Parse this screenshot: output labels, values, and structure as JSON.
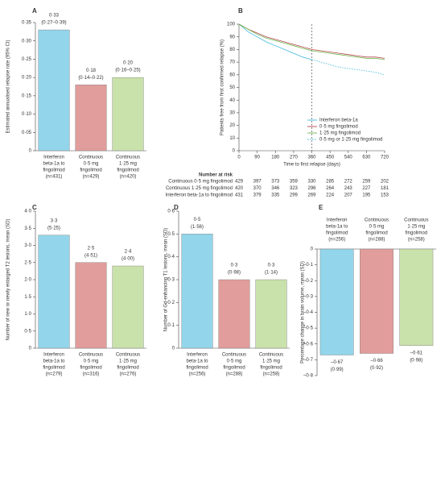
{
  "chart_data": [
    {
      "type": "bar",
      "panel": "A",
      "ylabel": "Estimated annualised relapse rate (95% CI)",
      "categories": [
        [
          "Interferon",
          "beta-1a to",
          "fingolimod",
          "(n=431)"
        ],
        [
          "Continuous",
          "0·5 mg",
          "fingolimod",
          "(n=429)"
        ],
        [
          "Continuous",
          "1·25 mg",
          "fingolimod",
          "(n=420)"
        ]
      ],
      "values": [
        0.33,
        0.18,
        0.2
      ],
      "value_labels": [
        "0·33",
        "0·18",
        "0·20"
      ],
      "detail_labels": [
        "(0·27–0·39)",
        "(0·14–0·22)",
        "(0·16–0·25)"
      ],
      "colors": [
        "#93d5ea",
        "#e19d9b",
        "#c9e1aa"
      ],
      "ylim": [
        0,
        0.35
      ],
      "yticks": [
        0,
        {
          "value": 0.05,
          "label": "0·05"
        },
        {
          "value": 0.1,
          "label": "0·10"
        },
        {
          "value": 0.15,
          "label": "0·15"
        },
        {
          "value": 0.2,
          "label": "0·20"
        },
        {
          "value": 0.25,
          "label": "0·25"
        },
        {
          "value": 0.3,
          "label": "0·30"
        },
        {
          "value": 0.35,
          "label": "0·35"
        }
      ]
    },
    {
      "type": "line",
      "panel": "B",
      "ylabel": "Patients free from first confirmed relapse (%)",
      "xlabel": "Time to first relapse (days)",
      "x": [
        0,
        45,
        90,
        135,
        180,
        225,
        270,
        315,
        360,
        405,
        450,
        495,
        540,
        585,
        630,
        675,
        720
      ],
      "series": [
        {
          "name": "Interferon beta-1a",
          "color": "#3fb8d8",
          "values": [
            100,
            94,
            90,
            86,
            83,
            80,
            77,
            74,
            72,
            null,
            null,
            null,
            null,
            null,
            null,
            null,
            null
          ]
        },
        {
          "name": "0·5 mg fingolimod",
          "color": "#b5474e",
          "values": [
            100,
            96,
            93,
            90,
            88,
            86,
            84,
            82,
            80,
            79,
            78,
            77,
            76,
            75,
            74,
            74,
            73
          ]
        },
        {
          "name": "1·25 mg fingolimod",
          "color": "#6cb54a",
          "values": [
            100,
            96,
            92,
            89,
            87,
            85,
            83,
            81,
            79,
            78,
            77,
            76,
            75,
            74,
            73,
            73,
            72
          ]
        },
        {
          "name": "0·5 mg or 1·25 mg fingolimod",
          "color": "#3fb8d8",
          "dashed": true,
          "values": [
            null,
            null,
            null,
            null,
            null,
            null,
            null,
            null,
            72,
            70,
            68,
            66,
            65,
            64,
            63,
            62,
            60
          ]
        }
      ],
      "reference_line_x": 360,
      "legend": "lower right",
      "xlim": [
        0,
        720
      ],
      "xticks": [
        0,
        90,
        180,
        270,
        360,
        450,
        540,
        630,
        720
      ],
      "ylim": [
        0,
        100
      ],
      "yticks": [
        0,
        10,
        20,
        30,
        40,
        50,
        60,
        70,
        80,
        90,
        100
      ],
      "risk_table": {
        "title": "Number at risk",
        "rows": [
          {
            "label": "Continuous 0·5 mg fingolimod",
            "values": [
              429,
              397,
              373,
              359,
              330,
              285,
              272,
              259,
              202
            ]
          },
          {
            "label": "Continuous 1·25 mg fingolimod",
            "values": [
              420,
              370,
              346,
              323,
              296,
              264,
              243,
              227,
              181
            ]
          },
          {
            "label": "Interferon beta-1a to fingolimod",
            "values": [
              431,
              379,
              335,
              299,
              269,
              224,
              207,
              195,
              153
            ]
          }
        ]
      }
    },
    {
      "type": "bar",
      "panel": "C",
      "ylabel": "Number of new or newly enlarged T2 lesions, mean (SD)",
      "categories": [
        [
          "Interferon",
          "beta-1a to",
          "fingolimod",
          "(n=279)"
        ],
        [
          "Continuous",
          "0·5 mg",
          "fingolimod",
          "(n=316)"
        ],
        [
          "Continuous",
          "1·25 mg",
          "fingolimod",
          "(n=276)"
        ]
      ],
      "values": [
        3.3,
        2.5,
        2.4
      ],
      "value_labels": [
        "3·3",
        "2·5",
        "2·4"
      ],
      "detail_labels": [
        "(5·25)",
        "(4·51)",
        "(4·00)"
      ],
      "colors": [
        "#93d5ea",
        "#e19d9b",
        "#c9e1aa"
      ],
      "ylim": [
        0,
        4
      ],
      "yticks": [
        0,
        {
          "value": 0.5,
          "label": "0·5"
        },
        {
          "value": 1,
          "label": "1·0"
        },
        {
          "value": 1.5,
          "label": "1·5"
        },
        {
          "value": 2,
          "label": "2·0"
        },
        {
          "value": 2.5,
          "label": "2·5"
        },
        {
          "value": 3,
          "label": "3·0"
        },
        {
          "value": 3.5,
          "label": "3·5"
        },
        {
          "value": 4,
          "label": "4·0"
        }
      ]
    },
    {
      "type": "bar",
      "panel": "D",
      "ylabel": "Number of Gd-enhancing T1 lesions, mean (SD)",
      "categories": [
        [
          "Interferon",
          "beta-1a to",
          "fingolimod",
          "(n=256)"
        ],
        [
          "Continuous",
          "0·5 mg",
          "fingolimod",
          "(n=288)"
        ],
        [
          "Continuous",
          "1·25 mg",
          "fingolimod",
          "(n=258)"
        ]
      ],
      "values": [
        0.5,
        0.3,
        0.3
      ],
      "value_labels": [
        "0·5",
        "0·3",
        "0·3"
      ],
      "detail_labels": [
        "(1·56)",
        "(0·98)",
        "(1·14)"
      ],
      "colors": [
        "#93d5ea",
        "#e19d9b",
        "#c9e1aa"
      ],
      "ylim": [
        0,
        0.6
      ],
      "yticks": [
        0,
        {
          "value": 0.1,
          "label": "0·1"
        },
        {
          "value": 0.2,
          "label": "0·2"
        },
        {
          "value": 0.3,
          "label": "0·3"
        },
        {
          "value": 0.4,
          "label": "0·4"
        },
        {
          "value": 0.5,
          "label": "0·5"
        },
        {
          "value": 0.6,
          "label": "0·6"
        }
      ]
    },
    {
      "type": "bar",
      "panel": "E",
      "ylabel": "Percentage change in brain volume, mean (SD)",
      "categories": [
        [
          "Interferon",
          "beta-1a to",
          "fingolimod",
          "(n=256)"
        ],
        [
          "Continuous",
          "0·5 mg",
          "fingolimod",
          "(n=288)"
        ],
        [
          "Continuous",
          "1·25 mg",
          "fingolimod",
          "(n=258)"
        ]
      ],
      "values": [
        -0.67,
        -0.66,
        -0.61
      ],
      "value_labels": [
        "–0·67",
        "–0·66",
        "–0·61"
      ],
      "detail_labels": [
        "(0·99)",
        "(0·92)",
        "(0·98)"
      ],
      "colors": [
        "#93d5ea",
        "#e19d9b",
        "#c9e1aa"
      ],
      "ylim": [
        -0.8,
        0
      ],
      "yticks": [
        0,
        {
          "value": -0.1,
          "label": "–0·1"
        },
        {
          "value": -0.2,
          "label": "–0·2"
        },
        {
          "value": -0.3,
          "label": "–0·3"
        },
        {
          "value": -0.4,
          "label": "–0·4"
        },
        {
          "value": -0.5,
          "label": "–0·5"
        },
        {
          "value": -0.6,
          "label": "–0·6"
        },
        {
          "value": -0.7,
          "label": "–0·7"
        },
        {
          "value": -0.8,
          "label": "–0·8"
        }
      ]
    }
  ]
}
